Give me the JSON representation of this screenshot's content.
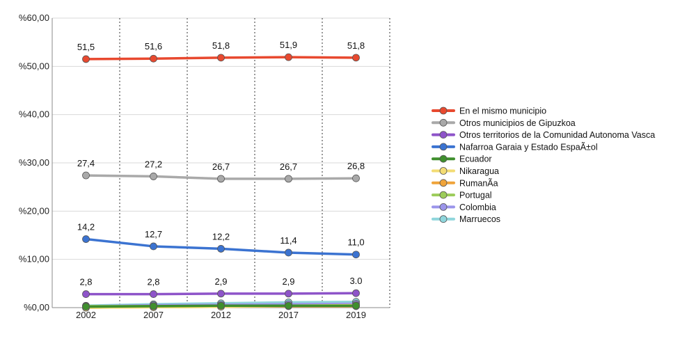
{
  "chart_data": {
    "type": "line",
    "title": "",
    "xlabel": "",
    "ylabel": "",
    "categories": [
      "2002",
      "2007",
      "2012",
      "2017",
      "2019"
    ],
    "ylim": [
      0,
      60
    ],
    "y_ticks": [
      "%0,00",
      "%10,00",
      "%20,00",
      "%30,00",
      "%40,00",
      "%50,00",
      "%60,00"
    ],
    "grid": {
      "horizontal": true,
      "vertical": "dotted"
    },
    "legend_position": "right",
    "series": [
      {
        "name": "En el mismo municipio",
        "color": "#e8492f",
        "values": [
          51.5,
          51.6,
          51.8,
          51.9,
          51.8
        ],
        "labels": [
          "51,5",
          "51,6",
          "51,8",
          "51,9",
          "51,8"
        ]
      },
      {
        "name": "Otros municipios de Gipuzkoa",
        "color": "#a9a9a9",
        "values": [
          27.4,
          27.2,
          26.7,
          26.7,
          26.8
        ],
        "labels": [
          "27,4",
          "27,2",
          "26,7",
          "26,7",
          "26,8"
        ]
      },
      {
        "name": "Otros territorios de la Comunidad Autonoma Vasca",
        "color": "#8e54c9",
        "values": [
          2.8,
          2.8,
          2.9,
          2.9,
          3.0
        ],
        "labels": [
          "2,8",
          "2,8",
          "2,9",
          "2,9",
          "3.0"
        ]
      },
      {
        "name": "Nafarroa Garaia y Estado EspaÃ±ol",
        "color": "#3b73d1",
        "values": [
          14.2,
          12.7,
          12.2,
          11.4,
          11.0
        ],
        "labels": [
          "14,2",
          "12,7",
          "12,2",
          "11,4",
          "11,0"
        ]
      },
      {
        "name": "Ecuador",
        "color": "#3f8f2d",
        "values": [
          0.2,
          0.3,
          0.4,
          0.4,
          0.4
        ],
        "labels": []
      },
      {
        "name": "Nikaragua",
        "color": "#f3dc74",
        "values": [
          0.0,
          0.1,
          0.2,
          0.4,
          0.5
        ],
        "labels": []
      },
      {
        "name": "RumanÃ­a",
        "color": "#f0a43a",
        "values": [
          0.0,
          0.1,
          0.2,
          0.3,
          0.3
        ],
        "labels": []
      },
      {
        "name": "Portugal",
        "color": "#9ccc5a",
        "values": [
          0.3,
          0.3,
          0.3,
          0.4,
          0.4
        ],
        "labels": []
      },
      {
        "name": "Colombia",
        "color": "#9b95ea",
        "values": [
          0.3,
          0.5,
          0.6,
          0.7,
          0.8
        ],
        "labels": []
      },
      {
        "name": "Marruecos",
        "color": "#8fd6dc",
        "values": [
          0.4,
          0.7,
          0.9,
          1.1,
          1.2
        ],
        "labels": []
      }
    ]
  }
}
